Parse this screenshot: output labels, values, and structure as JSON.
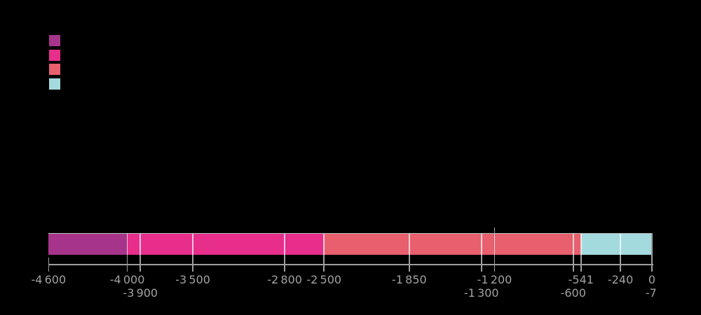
{
  "background_color": "#000000",
  "legend": {
    "swatches": [
      {
        "name": "purple-swatch",
        "color": "#A5348A"
      },
      {
        "name": "pink-swatch",
        "color": "#E72E8B"
      },
      {
        "name": "salmon-swatch",
        "color": "#E85F6D"
      },
      {
        "name": "cyan-swatch",
        "color": "#A3DADE"
      }
    ],
    "note": "no visible label text (swatches only)"
  },
  "chart_data": {
    "type": "bar",
    "subtype": "horizontal-stacked-timeline",
    "title": "",
    "xlabel": "",
    "ylabel": "",
    "axis": {
      "min": -4600,
      "max": 0,
      "grid": true,
      "line_color": "#9E9E9E",
      "label_color": "#A1A1A1"
    },
    "segments": [
      {
        "name": "segment-1",
        "color": "#A5348A",
        "start": -4600,
        "end": -4000
      },
      {
        "name": "segment-2",
        "color": "#E72E8B",
        "start": -4000,
        "end": -2500
      },
      {
        "name": "segment-3",
        "color": "#E85F6D",
        "start": -2500,
        "end": -541
      },
      {
        "name": "segment-4",
        "color": "#A3DADE",
        "start": -541,
        "end": 0
      }
    ],
    "ticks": [
      {
        "value": -4600,
        "label": "-4 600",
        "row": 1,
        "line": "tick"
      },
      {
        "value": -4000,
        "label": "-4 000",
        "row": 1,
        "line": "full"
      },
      {
        "value": -3900,
        "label": "-3 900",
        "row": 2,
        "line": "full"
      },
      {
        "value": -3500,
        "label": "-3 500",
        "row": 1,
        "line": "full"
      },
      {
        "value": -2800,
        "label": "-2 800",
        "row": 1,
        "line": "full"
      },
      {
        "value": -2500,
        "label": "-2 500",
        "row": 1,
        "line": "full"
      },
      {
        "value": -1850,
        "label": "-1 850",
        "row": 1,
        "line": "full"
      },
      {
        "value": -1300,
        "label": "-1 300",
        "row": 2,
        "line": "full"
      },
      {
        "value": -1200,
        "label": "-1 200",
        "row": 1,
        "line": "full-above"
      },
      {
        "value": -600,
        "label": "-600",
        "row": 2,
        "line": "full"
      },
      {
        "value": -541,
        "label": "-541",
        "row": 1,
        "line": "full"
      },
      {
        "value": -240,
        "label": "-240",
        "row": 1,
        "line": "full"
      },
      {
        "value": 0,
        "label": "0",
        "row": 1,
        "line": "edge"
      },
      {
        "value": -7,
        "label": "-7",
        "row": 2,
        "line": "none"
      }
    ]
  }
}
